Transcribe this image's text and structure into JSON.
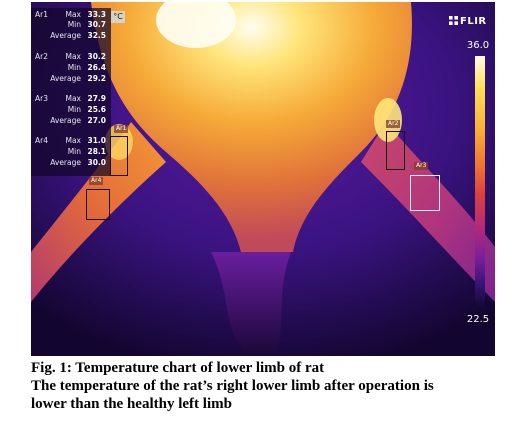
{
  "readouts": [
    {
      "area": "Ar1",
      "rows": [
        {
          "label": "Max",
          "value": "33.3"
        },
        {
          "label": "Min",
          "value": "30.7"
        },
        {
          "label": "Average",
          "value": "32.5"
        }
      ]
    },
    {
      "area": "Ar2",
      "rows": [
        {
          "label": "Max",
          "value": "30.2"
        },
        {
          "label": "Min",
          "value": "26.4"
        },
        {
          "label": "Average",
          "value": "29.2"
        }
      ]
    },
    {
      "area": "Ar3",
      "rows": [
        {
          "label": "Max",
          "value": "27.9"
        },
        {
          "label": "Min",
          "value": "25.6"
        },
        {
          "label": "Average",
          "value": "27.0"
        }
      ]
    },
    {
      "area": "Ar4",
      "rows": [
        {
          "label": "Max",
          "value": "31.0"
        },
        {
          "label": "Min",
          "value": "28.1"
        },
        {
          "label": "Average",
          "value": "30.0"
        }
      ]
    }
  ],
  "unit": "°C",
  "brand": "FLIR",
  "scale": {
    "max": "36.0",
    "min": "22.5"
  },
  "roi_labels": {
    "ar1": "Ar1",
    "ar2": "Ar2",
    "ar3": "Ar3",
    "ar4": "Ar4"
  },
  "caption": {
    "line1": "Fig. 1: Temperature chart of lower limb of rat",
    "line2": "The temperature of the rat’s right lower limb after operation is",
    "line3": "lower than the healthy left limb"
  },
  "colors": {
    "hot": "#fffde8",
    "warm": "#f0a030",
    "mid": "#c8306a",
    "cool": "#4a168a",
    "cold": "#0a0520"
  }
}
